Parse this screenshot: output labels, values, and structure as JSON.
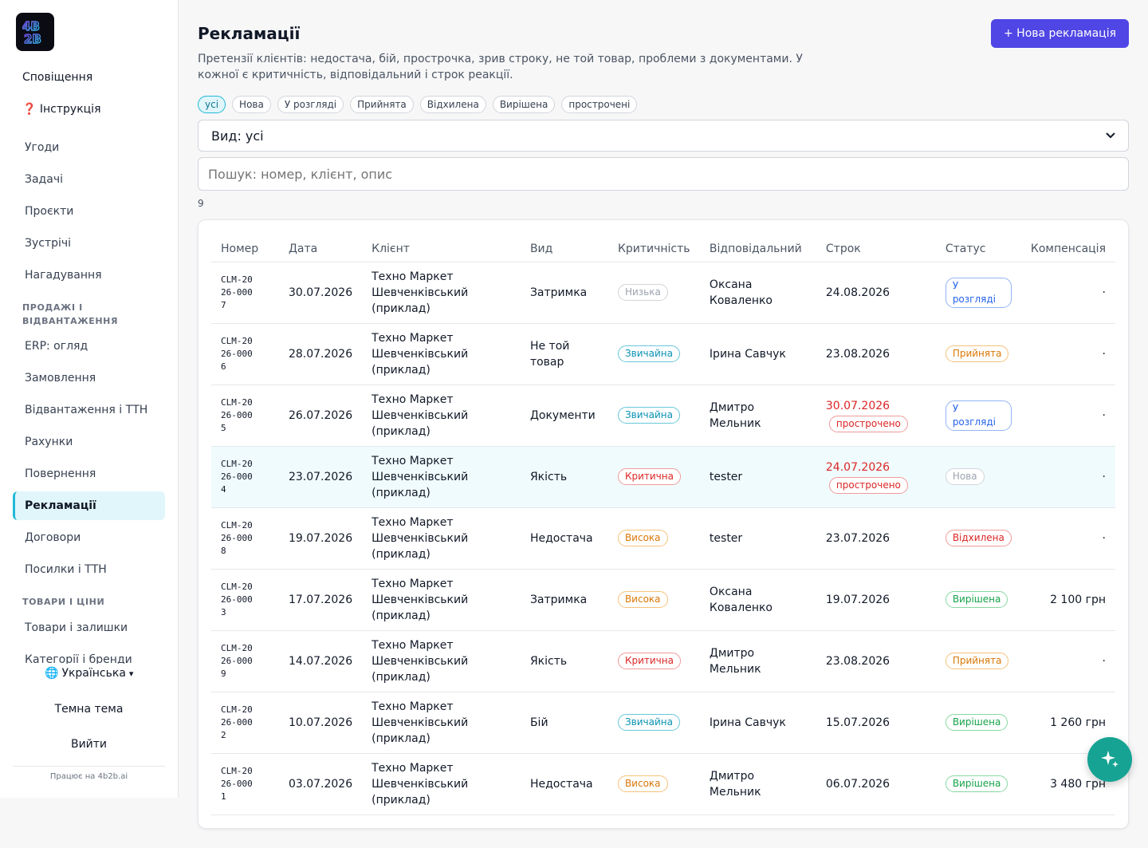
{
  "app": {
    "logo": "4B2B"
  },
  "sidebar": {
    "notifications": "Сповіщення",
    "instructions": "Інструкція",
    "instructions_icon": "❓",
    "items_main": [
      "Угоди",
      "Задачі",
      "Проєкти",
      "Зустрічі",
      "Нагадування"
    ],
    "section_sales": "ПРОДАЖІ І ВІДВАНТАЖЕННЯ",
    "items_sales": [
      "ERP: огляд",
      "Замовлення",
      "Відвантаження і ТТН",
      "Рахунки",
      "Повернення",
      "Рекламації",
      "Договори",
      "Посилки і ТТН"
    ],
    "section_goods": "ТОВАРИ І ЦІНИ",
    "items_goods": [
      "Товари і залишки",
      "Категорії і бренди"
    ],
    "language": "Українська",
    "language_icon": "🌐",
    "dark_theme": "Темна тема",
    "logout": "Вийти",
    "powered": "Працює на 4b2b.ai"
  },
  "header": {
    "title": "Рекламації",
    "description": "Претензії клієнтів: недостача, бій, прострочка, зрив строку, не той товар, проблеми з документами. У кожної є критичність, відповідальний і строк реакції.",
    "new_button": "+ Нова рекламація"
  },
  "filters": {
    "chips": [
      "усі",
      "Нова",
      "У розгляді",
      "Прийнята",
      "Відхилена",
      "Вирішена",
      "прострочені"
    ],
    "active_chip": "усі",
    "select_value": "Вид: усі",
    "search_placeholder": "Пошук: номер, клієнт, опис",
    "count": "9"
  },
  "table": {
    "headers": [
      "Номер",
      "Дата",
      "Клієнт",
      "Вид",
      "Критичність",
      "Відповідальний",
      "Строк",
      "Статус",
      "Компенсація"
    ],
    "overdue_label": "прострочено",
    "rows": [
      {
        "num": "CLM-2026-0007",
        "date": "30.07.2026",
        "client": "Техно Маркет Шевченківський (приклад)",
        "kind": "Затримка",
        "crit": "Низька",
        "crit_color": "gray",
        "owner": "Оксана Коваленко",
        "due": "24.08.2026",
        "overdue": false,
        "status": "У розгляді",
        "status_color": "blue",
        "comp": "·"
      },
      {
        "num": "CLM-2026-0006",
        "date": "28.07.2026",
        "client": "Техно Маркет Шевченківський (приклад)",
        "kind": "Не той товар",
        "crit": "Звичайна",
        "crit_color": "cyan",
        "owner": "Ірина Савчук",
        "due": "23.08.2026",
        "overdue": false,
        "status": "Прийнята",
        "status_color": "orange",
        "comp": "·"
      },
      {
        "num": "CLM-2026-0005",
        "date": "26.07.2026",
        "client": "Техно Маркет Шевченківський (приклад)",
        "kind": "Документи",
        "crit": "Звичайна",
        "crit_color": "cyan",
        "owner": "Дмитро Мельник",
        "due": "30.07.2026",
        "overdue": true,
        "status": "У розгляді",
        "status_color": "blue",
        "comp": "·"
      },
      {
        "num": "CLM-2026-0004",
        "date": "23.07.2026",
        "client": "Техно Маркет Шевченківський (приклад)",
        "kind": "Якість",
        "crit": "Критична",
        "crit_color": "red",
        "owner": "tester",
        "due": "24.07.2026",
        "overdue": true,
        "status": "Нова",
        "status_color": "gray",
        "comp": "·",
        "highlight": true
      },
      {
        "num": "CLM-2026-0008",
        "date": "19.07.2026",
        "client": "Техно Маркет Шевченківський (приклад)",
        "kind": "Недостача",
        "crit": "Висока",
        "crit_color": "orange",
        "owner": "tester",
        "due": "23.07.2026",
        "overdue": false,
        "status": "Відхилена",
        "status_color": "red",
        "comp": "·"
      },
      {
        "num": "CLM-2026-0003",
        "date": "17.07.2026",
        "client": "Техно Маркет Шевченківський (приклад)",
        "kind": "Затримка",
        "crit": "Висока",
        "crit_color": "orange",
        "owner": "Оксана Коваленко",
        "due": "19.07.2026",
        "overdue": false,
        "status": "Вирішена",
        "status_color": "green",
        "comp": "2 100 грн"
      },
      {
        "num": "CLM-2026-0009",
        "date": "14.07.2026",
        "client": "Техно Маркет Шевченківський (приклад)",
        "kind": "Якість",
        "crit": "Критична",
        "crit_color": "red",
        "owner": "Дмитро Мельник",
        "due": "23.08.2026",
        "overdue": false,
        "status": "Прийнята",
        "status_color": "orange",
        "comp": "·"
      },
      {
        "num": "CLM-2026-0002",
        "date": "10.07.2026",
        "client": "Техно Маркет Шевченківський (приклад)",
        "kind": "Бій",
        "crit": "Звичайна",
        "crit_color": "cyan",
        "owner": "Ірина Савчук",
        "due": "15.07.2026",
        "overdue": false,
        "status": "Вирішена",
        "status_color": "green",
        "comp": "1 260 грн"
      },
      {
        "num": "CLM-2026-0001",
        "date": "03.07.2026",
        "client": "Техно Маркет Шевченківський (приклад)",
        "kind": "Недостача",
        "crit": "Висока",
        "crit_color": "orange",
        "owner": "Дмитро Мельник",
        "due": "06.07.2026",
        "overdue": false,
        "status": "Вирішена",
        "status_color": "green",
        "comp": "3 480 грн"
      }
    ]
  },
  "colors": {
    "accent": "#4f46e5",
    "active_nav": "#22b8d6",
    "fab": "#16a394"
  },
  "icons": {
    "fab": "sparkle-icon",
    "select": "chevron-down-icon"
  }
}
